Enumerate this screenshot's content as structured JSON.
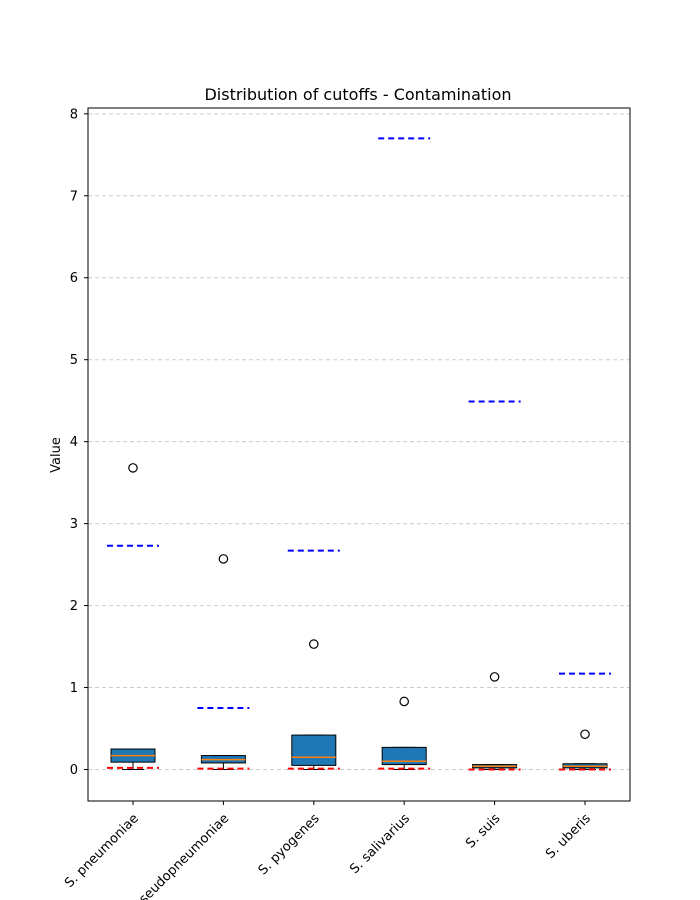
{
  "chart_data": {
    "type": "box",
    "title": "Distribution of cutoffs - Contamination",
    "xlabel": "",
    "ylabel": "Value",
    "ylim": [
      -0.38,
      8.08
    ],
    "yticks": [
      0,
      1,
      2,
      3,
      4,
      5,
      6,
      7,
      8
    ],
    "grid": "horizontal dashed",
    "categories": [
      "S. pneumoniae",
      "S. pseudopneumoniae",
      "S. pyogenes",
      "S. salivarius",
      "S. suis",
      "S. uberis"
    ],
    "boxes": [
      {
        "whislo": 0.0,
        "q1": 0.09,
        "med": 0.17,
        "q3": 0.25,
        "whishi": 0.25,
        "fliers": [
          3.68
        ]
      },
      {
        "whislo": 0.0,
        "q1": 0.08,
        "med": 0.12,
        "q3": 0.17,
        "whishi": 0.17,
        "fliers": [
          2.57
        ]
      },
      {
        "whislo": 0.0,
        "q1": 0.05,
        "med": 0.15,
        "q3": 0.42,
        "whishi": 0.42,
        "fliers": [
          1.53
        ]
      },
      {
        "whislo": 0.0,
        "q1": 0.06,
        "med": 0.1,
        "q3": 0.27,
        "whishi": 0.27,
        "fliers": [
          0.83
        ]
      },
      {
        "whislo": 0.0,
        "q1": 0.02,
        "med": 0.04,
        "q3": 0.06,
        "whishi": 0.06,
        "fliers": [
          1.13
        ]
      },
      {
        "whislo": 0.0,
        "q1": 0.02,
        "med": 0.04,
        "q3": 0.07,
        "whishi": 0.07,
        "fliers": [
          0.43
        ]
      }
    ],
    "upper_cutoffs": [
      2.73,
      0.75,
      2.67,
      7.7,
      4.49,
      1.17
    ],
    "lower_cutoffs": [
      0.02,
      0.01,
      0.01,
      0.01,
      0.0,
      0.0
    ],
    "colors": {
      "box_fill": "#1f77b4",
      "median": "#ff7f0e",
      "upper_cutoff": "#0000ff",
      "lower_cutoff": "#ff0000",
      "grid": "#cccccc"
    }
  }
}
